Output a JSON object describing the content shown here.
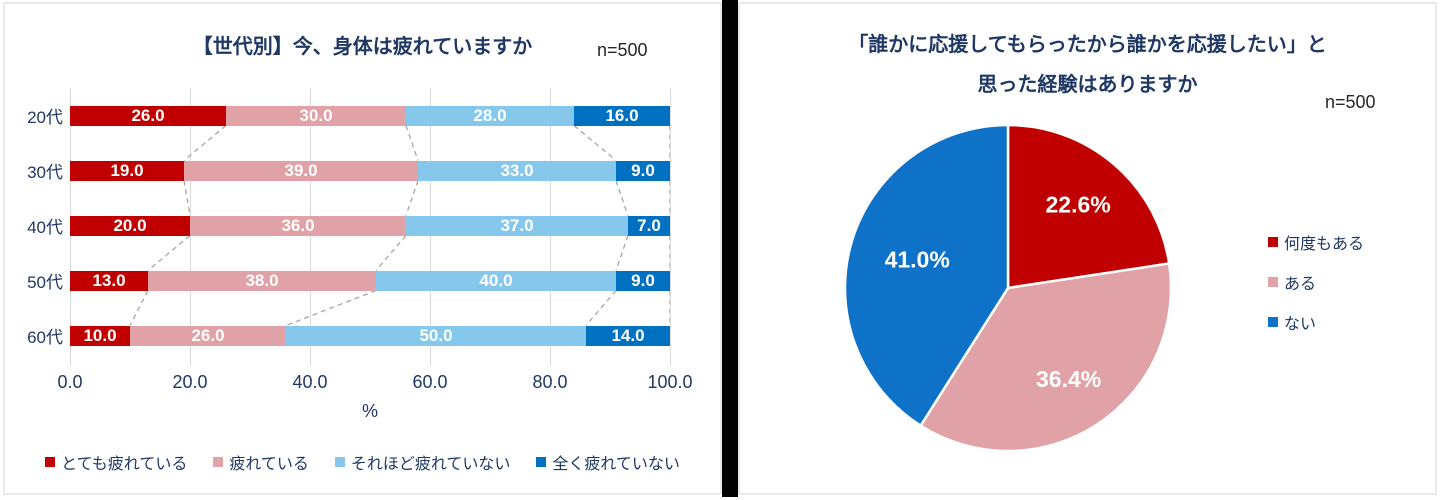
{
  "chart_data": [
    {
      "type": "bar",
      "orientation": "horizontal-stacked",
      "title": "【世代別】今、身体は疲れていますか",
      "annotation": "n=500",
      "categories": [
        "20代",
        "30代",
        "40代",
        "50代",
        "60代"
      ],
      "series": [
        {
          "name": "とても疲れている",
          "color": "#C00000",
          "values": [
            26.0,
            19.0,
            20.0,
            13.0,
            10.0
          ]
        },
        {
          "name": "疲れている",
          "color": "#E0A1A7",
          "values": [
            30.0,
            39.0,
            36.0,
            38.0,
            26.0
          ]
        },
        {
          "name": "それほど疲れていない",
          "color": "#86C8EC",
          "values": [
            28.0,
            33.0,
            37.0,
            40.0,
            50.0
          ]
        },
        {
          "name": "全く疲れていない",
          "color": "#0070C0",
          "values": [
            16.0,
            9.0,
            7.0,
            9.0,
            14.0
          ]
        }
      ],
      "xlabel": "%",
      "xlim": [
        0,
        100
      ],
      "x_ticks": [
        "0.0",
        "20.0",
        "40.0",
        "60.0",
        "80.0",
        "100.0"
      ],
      "grid": true,
      "legend_position": "bottom",
      "series_lines": "dashed-gray",
      "value_labels": "white-bold-one-decimal"
    },
    {
      "type": "pie",
      "title": "「誰かに応援してもらったから誰かを応援したい」と思った経験はありますか",
      "title_lines": [
        "「誰かに応援してもらったから誰かを応援したい」と",
        "思った経験はありますか"
      ],
      "annotation": "n=500",
      "labels": [
        "何度もある",
        "ある",
        "ない"
      ],
      "values": [
        22.6,
        36.4,
        41.0
      ],
      "colors": [
        "#C00000",
        "#E0A1A7",
        "#0D72C8"
      ],
      "value_labels": [
        "22.6%",
        "36.4%",
        "41.0%"
      ],
      "start_angle": "12-oclock",
      "direction": "clockwise",
      "legend_position": "right",
      "grid": false
    }
  ],
  "style": {
    "title_color": "#1F3864",
    "axis_text_color": "#1F3864",
    "annotation_color": "#262626",
    "gridline_color": "#D9D9D9",
    "series_line_color": "#A6A6A6",
    "panel_border_color": "#E9E9E9",
    "separator_color": "#000000"
  }
}
